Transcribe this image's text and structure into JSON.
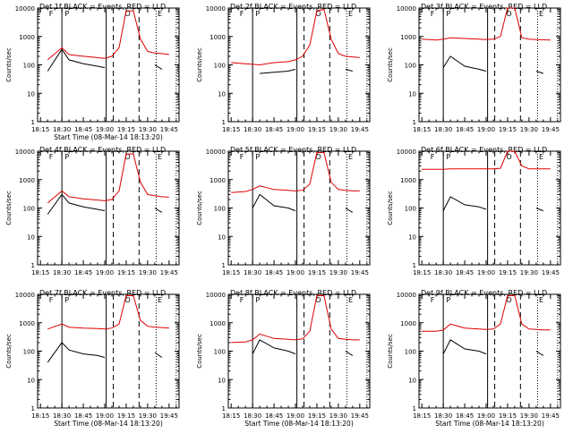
{
  "figure": {
    "xlabel": "Start Time (08-Mar-14 18:13:20)",
    "ylabel": "Counts/sec"
  },
  "axes": {
    "x_ticks": [
      "18:15",
      "18:30",
      "18:45",
      "19:00",
      "19:15",
      "19:30",
      "19:45"
    ],
    "y_ticks": [
      "1",
      "10",
      "100",
      "1000",
      "10000"
    ]
  },
  "markers": {
    "letters": [
      "F",
      "P",
      "O",
      "E"
    ]
  },
  "colors": {
    "events": "#000000",
    "lld": "#e00000"
  },
  "chart_data": [
    {
      "type": "line",
      "title": "Det 1f BLACK = Events, RED = LLD",
      "xlabel": "Start Time (08-Mar-14 18:13:20)",
      "ylabel": "Counts/sec",
      "ylog": true,
      "ylim": [
        1,
        10000
      ],
      "x": [
        "18:20",
        "18:30",
        "18:35",
        "18:45",
        "18:55",
        "19:00",
        "19:05",
        "19:10",
        "19:15",
        "19:20",
        "19:25",
        "19:30",
        "19:35",
        "19:40",
        "19:45"
      ],
      "series": [
        {
          "name": "BLACK = Events",
          "values": [
            60,
            350,
            150,
            110,
            90,
            80,
            null,
            null,
            null,
            null,
            null,
            null,
            100,
            70,
            null
          ]
        },
        {
          "name": "RED = LLD",
          "values": [
            150,
            400,
            230,
            200,
            180,
            170,
            200,
            400,
            8000,
            8000,
            800,
            300,
            260,
            250,
            230
          ]
        }
      ]
    },
    {
      "type": "line",
      "title": "Det 2f BLACK = Events, RED = LLD",
      "xlabel": "",
      "ylabel": "Counts/sec",
      "ylog": true,
      "ylim": [
        1,
        10000
      ],
      "x": [
        "18:15",
        "18:25",
        "18:35",
        "18:45",
        "18:55",
        "19:00",
        "19:05",
        "19:10",
        "19:15",
        "19:20",
        "19:25",
        "19:30",
        "19:35",
        "19:40",
        "19:45"
      ],
      "series": [
        {
          "name": "BLACK = Events",
          "values": [
            null,
            null,
            50,
            55,
            60,
            70,
            null,
            null,
            null,
            null,
            null,
            null,
            70,
            60,
            null
          ]
        },
        {
          "name": "RED = LLD",
          "values": [
            120,
            110,
            100,
            120,
            130,
            150,
            200,
            500,
            8000,
            9000,
            800,
            250,
            200,
            190,
            180
          ]
        }
      ]
    },
    {
      "type": "line",
      "title": "Det 3f BLACK = Events, RED = LLD",
      "xlabel": "",
      "ylabel": "Counts/sec",
      "ylog": true,
      "ylim": [
        1,
        10000
      ],
      "x": [
        "18:15",
        "18:25",
        "18:30",
        "18:35",
        "18:45",
        "18:55",
        "19:00",
        "19:05",
        "19:10",
        "19:15",
        "19:20",
        "19:25",
        "19:30",
        "19:35",
        "19:40",
        "19:45"
      ],
      "series": [
        {
          "name": "BLACK = Events",
          "values": [
            null,
            null,
            80,
            200,
            90,
            70,
            60,
            null,
            null,
            null,
            null,
            null,
            null,
            60,
            50,
            null
          ]
        },
        {
          "name": "RED = LLD",
          "values": [
            800,
            750,
            800,
            900,
            850,
            800,
            780,
            800,
            1000,
            10000,
            10000,
            900,
            800,
            780,
            760,
            750
          ]
        }
      ]
    },
    {
      "type": "line",
      "title": "Det 4f BLACK = Events, RED = LLD",
      "xlabel": "",
      "ylabel": "Counts/sec",
      "ylog": true,
      "ylim": [
        1,
        10000
      ],
      "x": [
        "18:20",
        "18:30",
        "18:35",
        "18:45",
        "18:55",
        "19:00",
        "19:05",
        "19:10",
        "19:15",
        "19:20",
        "19:25",
        "19:30",
        "19:35",
        "19:40",
        "19:45"
      ],
      "series": [
        {
          "name": "BLACK = Events",
          "values": [
            60,
            300,
            150,
            110,
            90,
            80,
            null,
            null,
            null,
            null,
            null,
            null,
            100,
            70,
            null
          ]
        },
        {
          "name": "RED = LLD",
          "values": [
            150,
            400,
            250,
            210,
            190,
            180,
            200,
            400,
            8000,
            8000,
            800,
            300,
            270,
            250,
            240
          ]
        }
      ]
    },
    {
      "type": "line",
      "title": "Det 5f BLACK = Events, RED = LLD",
      "xlabel": "",
      "ylabel": "Counts/sec",
      "ylog": true,
      "ylim": [
        1,
        10000
      ],
      "x": [
        "18:15",
        "18:25",
        "18:30",
        "18:35",
        "18:45",
        "18:55",
        "19:00",
        "19:05",
        "19:10",
        "19:15",
        "19:20",
        "19:25",
        "19:30",
        "19:35",
        "19:40",
        "19:45"
      ],
      "series": [
        {
          "name": "BLACK = Events",
          "values": [
            null,
            null,
            100,
            300,
            120,
            100,
            80,
            null,
            null,
            null,
            null,
            null,
            null,
            100,
            70,
            null
          ]
        },
        {
          "name": "RED = LLD",
          "values": [
            350,
            380,
            450,
            600,
            450,
            420,
            400,
            420,
            700,
            9000,
            9000,
            800,
            450,
            420,
            400,
            400
          ]
        }
      ]
    },
    {
      "type": "line",
      "title": "Det 6f BLACK = Events, RED = LLD",
      "xlabel": "",
      "ylabel": "Counts/sec",
      "ylog": true,
      "ylim": [
        1,
        10000
      ],
      "x": [
        "18:15",
        "18:25",
        "18:30",
        "18:35",
        "18:45",
        "18:55",
        "19:00",
        "19:05",
        "19:10",
        "19:15",
        "19:20",
        "19:25",
        "19:30",
        "19:35",
        "19:40",
        "19:45"
      ],
      "series": [
        {
          "name": "BLACK = Events",
          "values": [
            null,
            null,
            80,
            250,
            130,
            110,
            90,
            null,
            null,
            null,
            null,
            null,
            null,
            100,
            80,
            null
          ]
        },
        {
          "name": "RED = LLD",
          "values": [
            2300,
            2300,
            2300,
            2400,
            2400,
            2400,
            2400,
            2400,
            2500,
            10000,
            10000,
            3000,
            2400,
            2400,
            2400,
            2400
          ]
        }
      ]
    },
    {
      "type": "line",
      "title": "Det 7f BLACK = Events, RED = LLD",
      "xlabel": "Start Time (08-Mar-14 18:13:20)",
      "ylabel": "Counts/sec",
      "ylog": true,
      "ylim": [
        1,
        10000
      ],
      "x": [
        "18:20",
        "18:30",
        "18:35",
        "18:45",
        "18:55",
        "19:00",
        "19:05",
        "19:10",
        "19:15",
        "19:20",
        "19:25",
        "19:30",
        "19:35",
        "19:40",
        "19:45"
      ],
      "series": [
        {
          "name": "BLACK = Events",
          "values": [
            40,
            200,
            110,
            80,
            70,
            60,
            null,
            null,
            null,
            null,
            null,
            null,
            90,
            60,
            null
          ]
        },
        {
          "name": "RED = LLD",
          "values": [
            600,
            900,
            700,
            650,
            620,
            600,
            650,
            900,
            9000,
            9000,
            1200,
            750,
            700,
            680,
            650
          ]
        }
      ]
    },
    {
      "type": "line",
      "title": "Det 8f BLACK = Events, RED = LLD",
      "xlabel": "Start Time (08-Mar-14 18:13:20)",
      "ylabel": "Counts/sec",
      "ylog": true,
      "ylim": [
        1,
        10000
      ],
      "x": [
        "18:15",
        "18:25",
        "18:30",
        "18:35",
        "18:45",
        "18:55",
        "19:00",
        "19:05",
        "19:10",
        "19:15",
        "19:20",
        "19:25",
        "19:30",
        "19:35",
        "19:40",
        "19:45"
      ],
      "series": [
        {
          "name": "BLACK = Events",
          "values": [
            null,
            null,
            80,
            250,
            130,
            100,
            80,
            null,
            null,
            null,
            null,
            null,
            null,
            100,
            70,
            null
          ]
        },
        {
          "name": "RED = LLD",
          "values": [
            200,
            210,
            250,
            400,
            280,
            260,
            250,
            270,
            500,
            9000,
            9000,
            600,
            280,
            260,
            250,
            250
          ]
        }
      ]
    },
    {
      "type": "line",
      "title": "Det 9f BLACK = Events, RED = LLD",
      "xlabel": "Start Time (08-Mar-14 18:13:20)",
      "ylabel": "Counts/sec",
      "ylog": true,
      "ylim": [
        1,
        10000
      ],
      "x": [
        "18:15",
        "18:25",
        "18:30",
        "18:35",
        "18:45",
        "18:55",
        "19:00",
        "19:05",
        "19:10",
        "19:15",
        "19:20",
        "19:25",
        "19:30",
        "19:35",
        "19:40",
        "19:45"
      ],
      "series": [
        {
          "name": "BLACK = Events",
          "values": [
            null,
            null,
            80,
            250,
            120,
            100,
            80,
            null,
            null,
            null,
            null,
            null,
            null,
            100,
            70,
            null
          ]
        },
        {
          "name": "RED = LLD",
          "values": [
            500,
            500,
            550,
            900,
            650,
            600,
            580,
            600,
            900,
            9000,
            9000,
            900,
            600,
            580,
            560,
            560
          ]
        }
      ]
    }
  ]
}
